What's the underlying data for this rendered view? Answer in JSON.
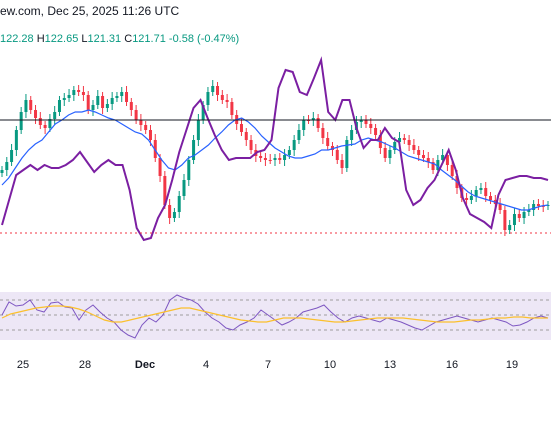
{
  "header": {
    "title_fragment": "ew.com, Dec 25, 2025 11:26 UTC"
  },
  "ohlc": {
    "o_value": "122.28",
    "h_label": "H",
    "h_value": "122.65",
    "l_label": "L",
    "l_value": "121.31",
    "c_label": "C",
    "c_value": "121.71",
    "change": "-0.58 (-0.47%)"
  },
  "colors": {
    "up": "#089981",
    "down": "#f23645",
    "ma_blue": "#2962ff",
    "overlay_purple": "#7b1fa2",
    "rsi_panel_bg": "#ede7f6",
    "rsi_line": "#7e57c2",
    "rsi_ma": "#fbc02d",
    "hline": "#131722",
    "dotted_red": "#f23645"
  },
  "chart_data": [
    {
      "type": "candlestick",
      "x_labels": [
        "25",
        "28",
        "Dec",
        "4",
        "7",
        "10",
        "13",
        "16",
        "19"
      ],
      "series": [
        {
          "name": "",
          "kind": "candles",
          "color_up": "#089981",
          "color_down": "#f23645",
          "values_y": [
            170,
            162,
            150,
            130,
            112,
            100,
            110,
            118,
            125,
            128,
            119,
            112,
            100,
            98,
            95,
            90,
            92,
            95,
            110,
            105,
            96,
            108,
            104,
            98,
            96,
            92,
            102,
            110,
            120,
            125,
            130,
            140,
            158,
            176,
            205,
            218,
            212,
            196,
            180,
            160,
            140,
            120,
            105,
            92,
            86,
            95,
            100,
            102,
            115,
            124,
            132,
            140,
            150,
            156,
            158,
            160,
            160,
            158,
            160,
            155,
            150,
            140,
            130,
            120,
            120,
            118,
            128,
            138,
            146,
            150,
            160,
            168,
            140,
            130,
            122,
            120,
            124,
            128,
            135,
            148,
            158,
            150,
            142,
            138,
            140,
            145,
            150,
            155,
            158,
            162,
            170,
            160,
            155,
            165,
            176,
            188,
            198,
            200,
            196,
            190,
            188,
            196,
            200,
            204,
            210,
            230,
            225,
            214,
            218,
            212,
            210,
            204,
            206,
            206,
            205
          ]
        },
        {
          "name": "",
          "kind": "line",
          "color": "#2962ff",
          "values_y": [
            185,
            178,
            168,
            158,
            150,
            144,
            140,
            132,
            124,
            120,
            115,
            112,
            112,
            110,
            112,
            115,
            118,
            120,
            124,
            128,
            132,
            134,
            140,
            150,
            160,
            168,
            170,
            165,
            158,
            155,
            150,
            145,
            138,
            132,
            125,
            120,
            118,
            122,
            128,
            136,
            142,
            148,
            152,
            156,
            158,
            158,
            156,
            154,
            150,
            150,
            148,
            146,
            145,
            144,
            140,
            138,
            140,
            142,
            145,
            148,
            152,
            156,
            158,
            160,
            162,
            164,
            170,
            175,
            180,
            186,
            192,
            196,
            198,
            200,
            202,
            204,
            206,
            208,
            210,
            210,
            208,
            206,
            205
          ]
        },
        {
          "name": "",
          "kind": "line",
          "color": "#7b1fa2",
          "values_y": [
            225,
            200,
            175,
            170,
            165,
            170,
            165,
            168,
            168,
            165,
            160,
            152,
            162,
            172,
            165,
            160,
            165,
            165,
            190,
            228,
            240,
            238,
            218,
            205,
            180,
            152,
            130,
            108,
            100,
            118,
            135,
            150,
            160,
            158,
            158,
            158,
            152,
            150,
            140,
            88,
            70,
            72,
            92,
            95,
            78,
            60,
            112,
            120,
            100,
            100,
            128,
            148,
            140,
            140,
            128,
            138,
            142,
            190,
            205,
            200,
            188,
            180,
            165,
            150,
            170,
            198,
            214,
            218,
            222,
            228,
            195,
            180,
            178,
            176,
            176,
            178,
            178,
            180
          ]
        }
      ],
      "annotations": [
        {
          "kind": "hline",
          "y": 120,
          "color": "#131722"
        },
        {
          "kind": "hline_dotted",
          "y": 233,
          "color": "#f23645"
        }
      ],
      "xlabel": "",
      "ylabel": ""
    },
    {
      "type": "line",
      "panel": "indicator",
      "series": [
        {
          "name": "",
          "color": "#7e57c2",
          "values_y": [
            315,
            302,
            306,
            305,
            300,
            310,
            312,
            303,
            302,
            307,
            308,
            320,
            310,
            305,
            312,
            318,
            322,
            330,
            335,
            338,
            325,
            318,
            322,
            315,
            300,
            295,
            298,
            300,
            304,
            312,
            318,
            322,
            328,
            330,
            325,
            322,
            318,
            310,
            315,
            320,
            325,
            322,
            318,
            312,
            310,
            308,
            305,
            312,
            318,
            322,
            318,
            316,
            318,
            320,
            322,
            318,
            320,
            322,
            325,
            328,
            330,
            326,
            322,
            320,
            318,
            316,
            318,
            320,
            322,
            320,
            318,
            320,
            322,
            326,
            325,
            322,
            318,
            316,
            318
          ]
        },
        {
          "name": "",
          "color": "#fbc02d",
          "values_y": [
            318,
            314,
            312,
            310,
            308,
            307,
            306,
            306,
            307,
            309,
            312,
            316,
            320,
            322,
            322,
            320,
            318,
            316,
            314,
            312,
            310,
            308,
            308,
            310,
            312,
            314,
            316,
            318,
            320,
            321,
            322,
            322,
            320,
            318,
            318,
            318,
            319,
            320,
            321,
            322,
            322,
            321,
            320,
            319,
            318,
            318,
            318,
            318,
            319,
            320,
            321,
            322,
            322,
            322,
            321,
            320,
            320,
            319,
            318,
            318,
            317,
            317,
            318,
            318,
            318
          ]
        }
      ],
      "reference_lines": [
        300,
        315,
        330
      ]
    }
  ]
}
